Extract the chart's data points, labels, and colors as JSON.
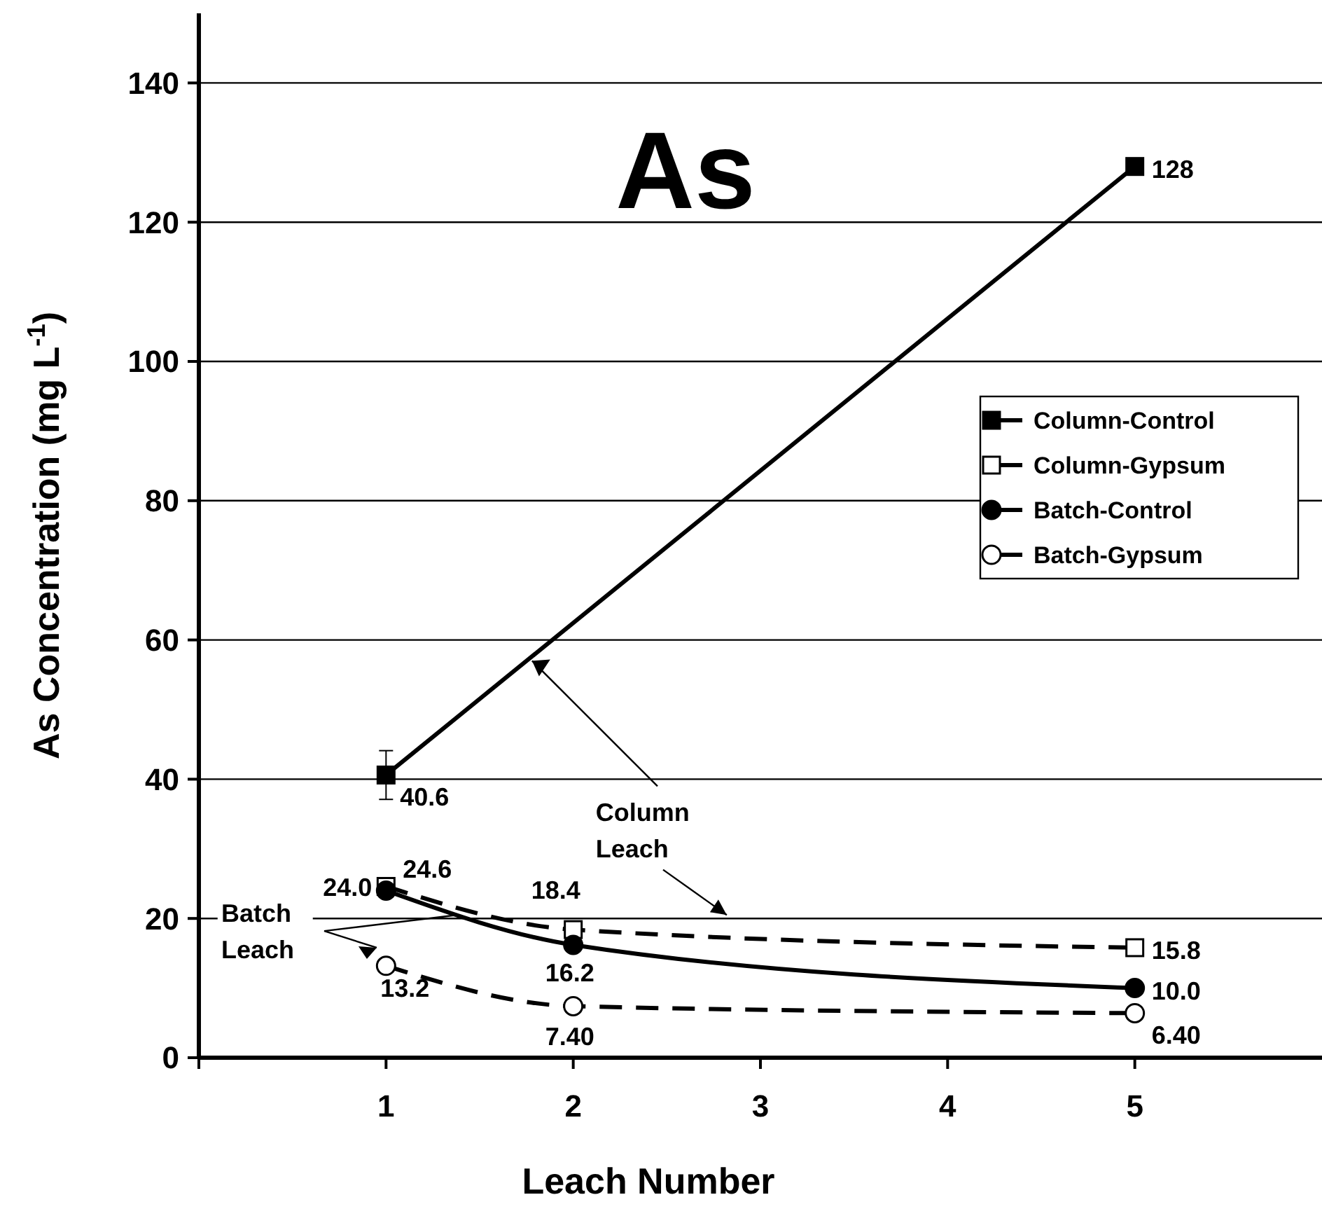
{
  "chart_data": {
    "type": "line",
    "title": "As",
    "xlabel": "Leach Number",
    "ylabel": "As Concentration (mg L$^{-1}$)",
    "xlim": [
      0,
      6
    ],
    "xticks": [
      {
        "value": 0,
        "label": null
      },
      1,
      2,
      3,
      4,
      5
    ],
    "ylim": [
      0,
      150
    ],
    "yticks": [
      0,
      20,
      40,
      60,
      80,
      100,
      120,
      140
    ],
    "grid": "y",
    "legend": "right",
    "annotations": [
      {
        "text": "Column Leach",
        "x": 1.78,
        "y": 57
      },
      "Batch Leach"
    ],
    "series": [
      {
        "name": "Column-Control",
        "color": "#000000",
        "x": [
          1,
          5
        ],
        "values": [
          40.6,
          128
        ],
        "errors": [
          3.5,
          null
        ],
        "value_labels": [
          "40.6",
          "128"
        ],
        "marker": "square",
        "line_style": "solid"
      },
      {
        "name": "Column-Gypsum",
        "color": "#000000",
        "x": [
          1,
          2,
          5
        ],
        "values": [
          24.6,
          18.4,
          15.8
        ],
        "value_labels": [
          "24.6",
          "18.4",
          "15.8"
        ],
        "marker": "square",
        "line_style": "dashed"
      },
      {
        "name": "Batch-Control",
        "color": "#000000",
        "x": [
          1,
          2,
          5
        ],
        "values": [
          24.0,
          16.2,
          10.0
        ],
        "value_labels": [
          "24.0",
          "16.2",
          "10.0"
        ],
        "marker": "circle",
        "line_style": "solid"
      },
      {
        "name": "Batch-Gypsum",
        "color": "#000000",
        "x": [
          1,
          2,
          5
        ],
        "values": [
          13.2,
          7.4,
          6.4
        ],
        "value_labels": [
          "13.2",
          "7.40",
          "6.40"
        ],
        "marker": "circle",
        "line_style": "dashed"
      }
    ]
  }
}
